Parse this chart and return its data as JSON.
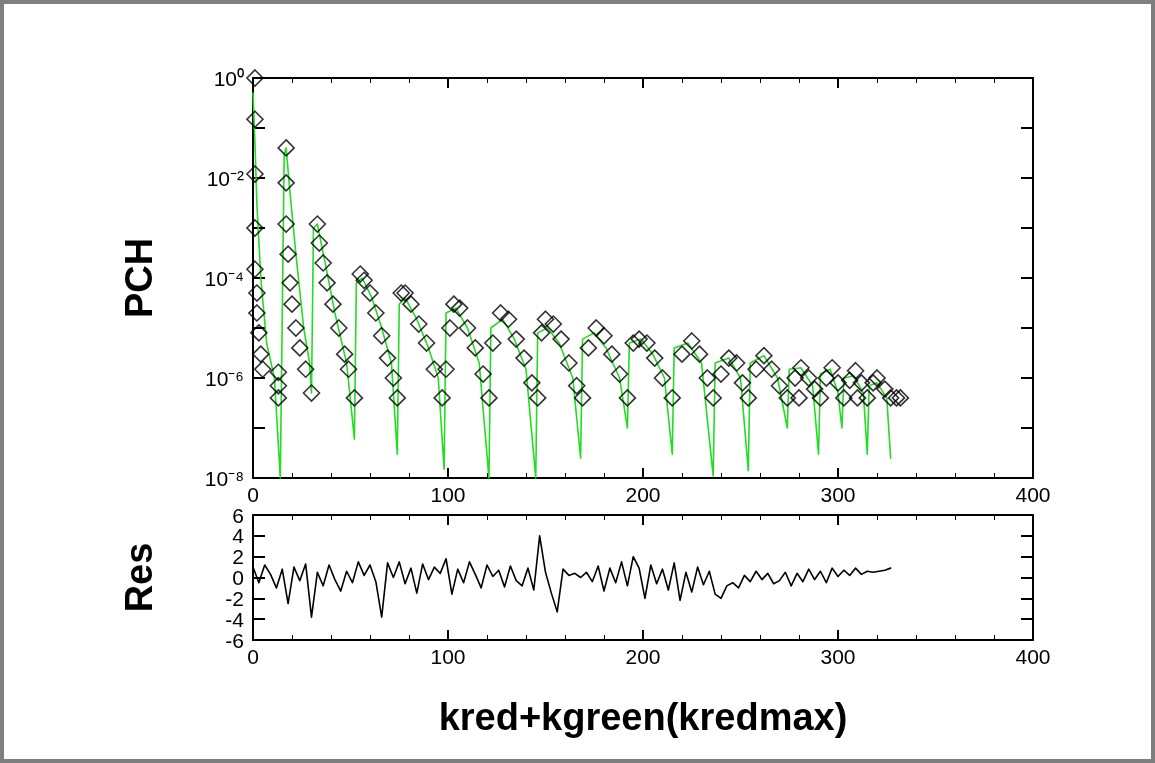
{
  "chart_data": [
    {
      "type": "scatter",
      "ylabel": "PCH",
      "xlim": [
        0,
        400
      ],
      "xticks": [
        0,
        100,
        200,
        300,
        400
      ],
      "ylim": [
        1e-08,
        1
      ],
      "log": "y",
      "grid": false,
      "yticks": [
        {
          "value": 1,
          "label": "10⁰"
        },
        {
          "value": 0.1,
          "label": null
        },
        {
          "value": 0.01,
          "label": "10⁻²"
        },
        {
          "value": 0.001,
          "label": null
        },
        {
          "value": 0.0001,
          "label": "10⁻⁴"
        },
        {
          "value": 1e-05,
          "label": null
        },
        {
          "value": 1e-06,
          "label": "10⁻⁶"
        },
        {
          "value": 1e-07,
          "label": null
        },
        {
          "value": 1e-08,
          "label": "10⁻⁸"
        }
      ],
      "series": [
        {
          "marker": "diamond",
          "color": "#000000",
          "x": [
            1,
            1,
            1,
            1,
            1,
            2,
            2,
            3,
            4,
            5,
            13,
            13,
            13,
            17,
            17,
            17,
            18,
            19,
            20,
            22,
            24,
            27,
            30,
            33,
            34,
            36,
            38,
            41,
            44,
            47,
            49,
            52,
            55,
            57,
            60,
            63,
            66,
            69,
            72,
            74,
            76,
            78,
            81,
            85,
            89,
            93,
            97,
            99,
            101,
            103,
            106,
            110,
            114,
            118,
            121,
            123,
            127,
            131,
            135,
            139,
            143,
            146,
            148,
            150,
            154,
            158,
            162,
            166,
            169,
            172,
            176,
            180,
            184,
            188,
            192,
            195,
            198,
            202,
            206,
            210,
            215,
            220,
            225,
            229,
            233,
            236,
            240,
            244,
            248,
            251,
            254,
            258,
            262,
            266,
            270,
            274,
            278,
            280,
            281,
            285,
            288,
            291,
            294,
            297,
            300,
            303,
            306,
            309,
            310,
            312,
            315,
            318,
            320,
            324,
            327,
            330,
            332
          ],
          "values": [
            1,
            0.15,
            0.012,
            0.001,
            0.00015,
            5e-05,
            2e-05,
            8e-06,
            3e-06,
            1.5e-06,
            1.3e-06,
            7e-07,
            4e-07,
            0.04,
            0.008,
            0.0012,
            0.0003,
            8e-05,
            3e-05,
            1e-05,
            4e-06,
            1.5e-06,
            5e-07,
            0.0012,
            0.0005,
            0.0002,
            8e-05,
            3e-05,
            1e-05,
            3e-06,
            1.5e-06,
            4e-07,
            0.00012,
            9e-05,
            5e-05,
            2e-05,
            7e-06,
            2.5e-06,
            1e-06,
            4e-07,
            5e-05,
            5e-05,
            3e-05,
            1.2e-05,
            5e-06,
            1.5e-06,
            4e-07,
            1.5e-06,
            1e-05,
            3e-05,
            2.5e-05,
            1e-05,
            4e-06,
            1.2e-06,
            4e-07,
            5e-06,
            2e-05,
            1.5e-05,
            6e-06,
            2.5e-06,
            8e-07,
            4e-07,
            8e-06,
            1.5e-05,
            1.2e-05,
            6e-06,
            2e-06,
            7e-07,
            4e-07,
            4e-06,
            1e-05,
            7e-06,
            3e-06,
            1.2e-06,
            4e-07,
            5e-06,
            6e-06,
            5e-06,
            2.5e-06,
            1e-06,
            4e-07,
            3e-06,
            5.5e-06,
            3e-06,
            1e-06,
            4e-07,
            1.2e-06,
            2.5e-06,
            2e-06,
            8e-07,
            4e-07,
            1.5e-06,
            2.8e-06,
            1.5e-06,
            7e-07,
            4e-07,
            1e-06,
            4e-07,
            1.6e-06,
            1e-06,
            6e-07,
            4e-07,
            1e-06,
            1.6e-06,
            8e-07,
            4e-07,
            9e-07,
            1.4e-06,
            4e-07,
            8e-07,
            4e-07,
            8e-07,
            1e-06,
            6e-07,
            4e-07,
            4e-07,
            4e-07
          ]
        },
        {
          "type": "line",
          "marker": "none",
          "color": "#22dd22",
          "x": [
            0,
            1,
            2,
            4,
            7,
            11,
            14,
            16,
            17,
            19,
            22,
            26,
            29,
            30,
            31,
            33,
            37,
            42,
            48,
            52,
            53,
            56,
            61,
            66,
            71,
            74,
            75,
            78,
            84,
            90,
            95,
            98,
            99,
            104,
            110,
            116,
            121,
            122,
            128,
            134,
            140,
            145,
            146,
            151,
            157,
            164,
            168,
            169,
            175,
            181,
            188,
            192,
            193,
            199,
            205,
            211,
            215,
            216,
            223,
            230,
            236,
            237,
            244,
            250,
            254,
            255,
            262,
            269,
            274,
            275,
            281,
            287,
            290,
            291,
            296,
            300,
            302,
            303,
            308,
            313,
            315,
            316,
            320,
            325,
            327
          ],
          "values": [
            0.5,
            0.05,
            0.003,
            0.0001,
            5e-06,
            1e-06,
            1e-08,
            0.03,
            0.04,
            0.005,
            0.0003,
            1e-05,
            2e-06,
            5e-07,
            0.001,
            0.0012,
            0.0002,
            2e-05,
            2e-06,
            6e-08,
            8e-05,
            0.0001,
            4e-05,
            1e-05,
            2e-06,
            3e-08,
            3e-05,
            4e-05,
            1.5e-05,
            4e-06,
            1e-06,
            1.5e-08,
            2e-05,
            2.5e-05,
            1e-05,
            2e-06,
            1e-08,
            1e-05,
            1.5e-05,
            6e-06,
            1.5e-06,
            1e-08,
            8e-06,
            1e-05,
            5e-06,
            1e-06,
            2.5e-08,
            6e-06,
            8e-06,
            4e-06,
            1e-06,
            1e-07,
            5e-06,
            6e-06,
            3e-06,
            1e-06,
            3e-08,
            4e-06,
            5e-06,
            2e-06,
            1.1e-08,
            2e-06,
            2.5e-06,
            1e-06,
            1.4e-08,
            2e-06,
            2.8e-06,
            1e-06,
            1e-07,
            1.5e-06,
            1.6e-06,
            7e-07,
            3e-08,
            1.2e-06,
            1.5e-06,
            5e-07,
            1e-07,
            1e-06,
            1.1e-06,
            5e-07,
            3e-08,
            7e-07,
            8e-07,
            4e-07,
            2.5e-08
          ]
        }
      ]
    },
    {
      "type": "line",
      "ylabel": "Res",
      "xlabel": "kred+kgreen(kredmax)",
      "xlim": [
        0,
        400
      ],
      "xticks": [
        0,
        100,
        200,
        300,
        400
      ],
      "ylim": [
        -6,
        6
      ],
      "yticks": [
        6,
        4,
        2,
        0,
        -2,
        -4,
        -6
      ],
      "grid": false,
      "series": [
        {
          "marker": "none",
          "color": "#000000",
          "x": [
            0,
            3,
            6,
            9,
            12,
            15,
            18,
            21,
            24,
            27,
            30,
            33,
            36,
            39,
            42,
            45,
            48,
            51,
            54,
            57,
            60,
            63,
            66,
            69,
            72,
            75,
            78,
            81,
            84,
            87,
            90,
            93,
            96,
            99,
            102,
            105,
            108,
            111,
            114,
            117,
            120,
            123,
            126,
            129,
            132,
            135,
            138,
            141,
            144,
            147,
            150,
            153,
            156,
            159,
            162,
            165,
            168,
            171,
            174,
            177,
            180,
            183,
            186,
            189,
            192,
            195,
            198,
            201,
            204,
            207,
            210,
            213,
            216,
            219,
            222,
            225,
            228,
            231,
            234,
            237,
            240,
            243,
            246,
            249,
            252,
            255,
            258,
            261,
            264,
            267,
            270,
            273,
            276,
            279,
            282,
            285,
            288,
            291,
            294,
            297,
            300,
            303,
            306,
            309,
            312,
            315,
            318,
            321,
            324,
            327
          ],
          "values": [
            1.0,
            -0.5,
            1.2,
            0.3,
            -1.0,
            0.8,
            -2.5,
            1.0,
            -0.3,
            1.3,
            -3.8,
            0.5,
            -0.8,
            1.2,
            -0.2,
            -1.3,
            0.6,
            -0.5,
            1.5,
            0.2,
            1.2,
            -0.4,
            -3.8,
            1.4,
            0.0,
            1.5,
            -0.6,
            0.9,
            -1.5,
            1.3,
            -0.2,
            1.0,
            0.4,
            1.8,
            -1.6,
            0.8,
            -0.5,
            1.5,
            0.3,
            -1.0,
            1.2,
            0.1,
            0.7,
            -0.9,
            1.1,
            -0.3,
            -0.8,
            0.9,
            -1.2,
            4.0,
            0.5,
            -1.5,
            -3.3,
            0.8,
            0.2,
            0.4,
            0.0,
            0.5,
            -0.4,
            1.1,
            -1.3,
            0.9,
            -0.5,
            1.5,
            -0.8,
            2.0,
            0.9,
            -2.0,
            1.2,
            -0.6,
            0.8,
            -1.2,
            1.4,
            -2.2,
            0.5,
            -1.4,
            1.0,
            -0.7,
            0.6,
            -1.6,
            -2.0,
            -0.8,
            -0.5,
            -1.0,
            0.2,
            -0.4,
            0.6,
            -0.2,
            0.4,
            -0.6,
            -0.3,
            0.5,
            -0.8,
            0.4,
            -0.4,
            0.8,
            -0.2,
            0.6,
            -0.5,
            0.9,
            0.1,
            0.7,
            0.2,
            0.9,
            0.3,
            0.6,
            0.5,
            0.6,
            0.7,
            0.9
          ]
        }
      ]
    }
  ]
}
